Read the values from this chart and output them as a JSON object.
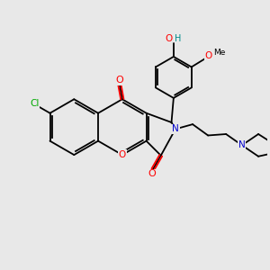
{
  "background_color": "#e8e8e8",
  "bond_color": "#000000",
  "atom_colors": {
    "O": "#ff0000",
    "N": "#0000cc",
    "Cl": "#00aa00",
    "C": "#000000",
    "H": "#008b8b"
  }
}
